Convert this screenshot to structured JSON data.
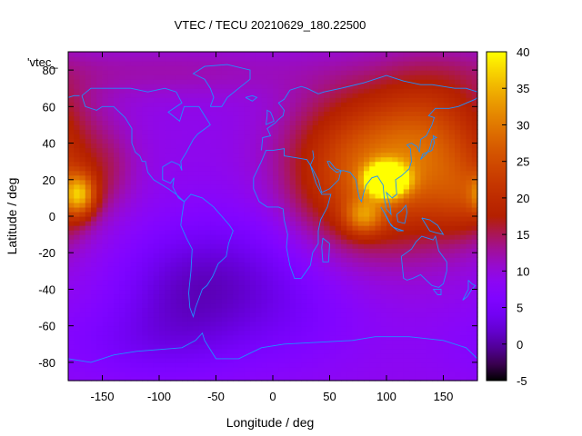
{
  "chart_data": {
    "type": "heatmap",
    "title": "VTEC / TECU 20210629_180.22500",
    "xlabel": "Longitude / deg",
    "ylabel": "Latitude / deg",
    "series_label": "'vtec_",
    "xlim": [
      -180,
      180
    ],
    "ylim": [
      -90,
      90
    ],
    "x_ticks": [
      -150,
      -100,
      -50,
      0,
      50,
      100,
      150
    ],
    "y_ticks": [
      -80,
      -60,
      -40,
      -20,
      0,
      20,
      40,
      60,
      80
    ],
    "colorbar": {
      "min": -5,
      "max": 40,
      "ticks": [
        -5,
        0,
        5,
        10,
        15,
        20,
        25,
        30,
        35,
        40
      ]
    },
    "palette": "black-purple-red-orange-yellow",
    "overlay": "coastlines",
    "coastline_color": "#1e90ff",
    "background_vtec": 9,
    "features": [
      {
        "lon": 100,
        "lat": 20,
        "vtec": 37,
        "sigma_lon": 12,
        "sigma_lat": 6
      },
      {
        "lon": 120,
        "lat": 25,
        "vtec": 14,
        "sigma_lon": 50,
        "sigma_lat": 28
      },
      {
        "lon": 80,
        "lat": 0,
        "vtec": 12,
        "sigma_lon": 12,
        "sigma_lat": 7
      },
      {
        "lon": 60,
        "lat": 25,
        "vtec": 9,
        "sigma_lon": 40,
        "sigma_lat": 30
      },
      {
        "lon": 140,
        "lat": 50,
        "vtec": 7,
        "sigma_lon": 40,
        "sigma_lat": 25
      },
      {
        "lon": 170,
        "lat": 10,
        "vtec": 6,
        "sigma_lon": 20,
        "sigma_lat": 15
      },
      {
        "lon": -170,
        "lat": 12,
        "vtec": 18,
        "sigma_lon": 10,
        "sigma_lat": 8
      },
      {
        "lon": -145,
        "lat": 25,
        "vtec": 3,
        "sigma_lon": 18,
        "sigma_lat": 15
      },
      {
        "lon": -80,
        "lat": -40,
        "vtec": -6,
        "sigma_lon": 45,
        "sigma_lat": 25
      },
      {
        "lon": -10,
        "lat": -30,
        "vtec": -4,
        "sigma_lon": 50,
        "sigma_lat": 25
      },
      {
        "lon": -120,
        "lat": -70,
        "vtec": -3,
        "sigma_lon": 60,
        "sigma_lat": 15
      },
      {
        "lon": 20,
        "lat": -60,
        "vtec": -2,
        "sigma_lon": 50,
        "sigma_lat": 20
      },
      {
        "lon": -90,
        "lat": 80,
        "vtec": 3,
        "sigma_lon": 90,
        "sigma_lat": 10
      }
    ]
  }
}
